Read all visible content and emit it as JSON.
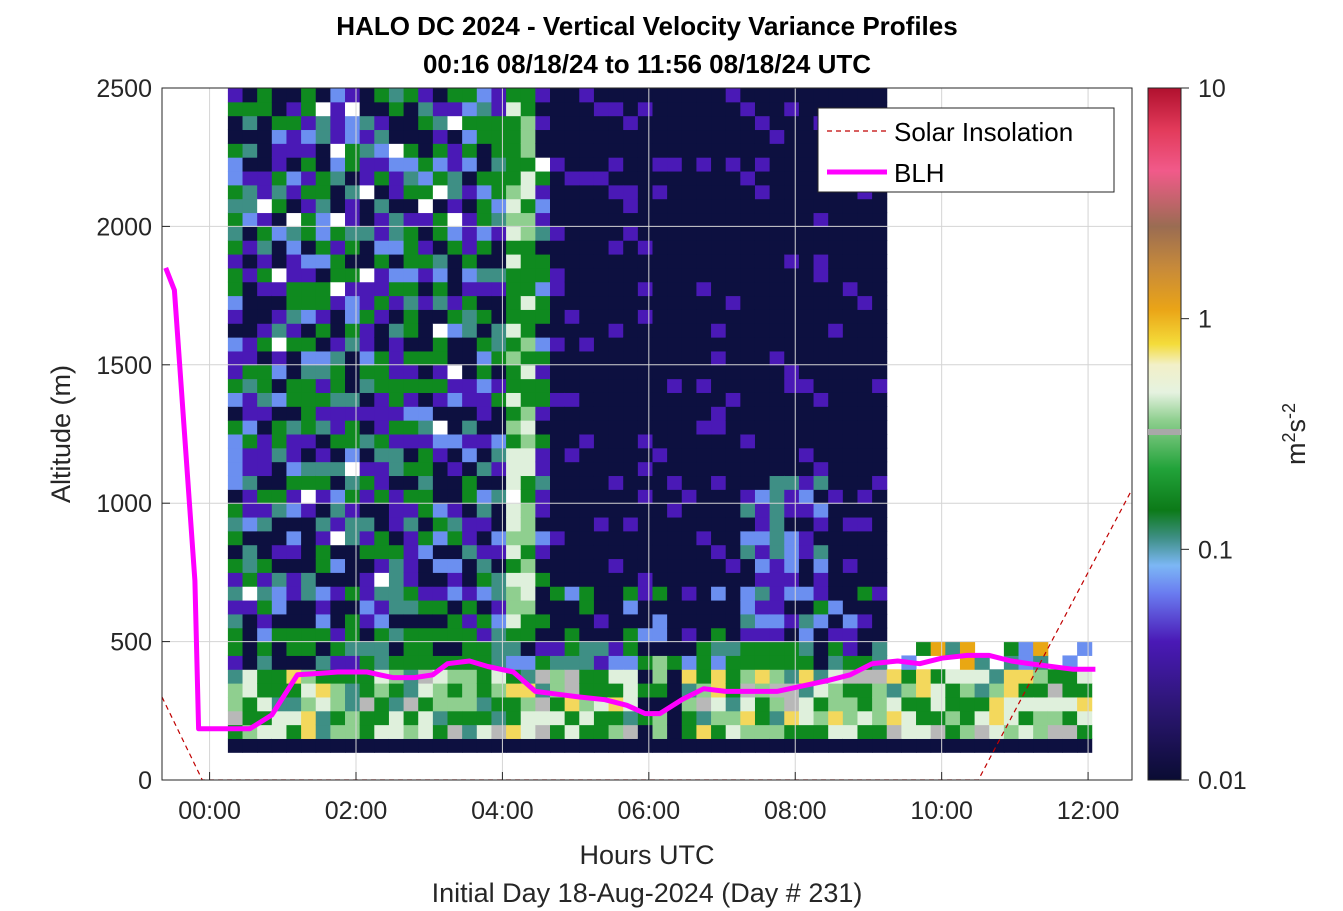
{
  "chart_data": {
    "type": "heatmap",
    "title": "HALO DC 2024 - Vertical Velocity Variance Profiles",
    "subtitle": "00:16 08/18/24 to 11:56 08/18/24  UTC",
    "xlabel": "Hours UTC",
    "xlabel2": "Initial Day 18-Aug-2024 (Day # 231)",
    "ylabel": "Altitude (m)",
    "x_ticks": [
      "00:00",
      "02:00",
      "04:00",
      "06:00",
      "08:00",
      "10:00",
      "12:00"
    ],
    "x_tick_values": [
      0,
      2,
      4,
      6,
      8,
      10,
      12
    ],
    "xlim": [
      -0.65,
      12.6
    ],
    "y_ticks": [
      "0",
      "500",
      "1000",
      "1500",
      "2000",
      "2500"
    ],
    "y_tick_values": [
      0,
      500,
      1000,
      1500,
      2000,
      2500
    ],
    "ylim": [
      0,
      2500
    ],
    "grid": true,
    "colorbar": {
      "label_base": "m",
      "label_exp1": "2",
      "label_mid": "s",
      "label_exp2": "-2",
      "scale": "log",
      "range": [
        0.01,
        10
      ],
      "ticks": [
        "10",
        "1",
        "0.1",
        "0.01"
      ],
      "tick_values": [
        10,
        1,
        0.1,
        0.01
      ]
    },
    "legend": {
      "position": "top-right",
      "entries": [
        "Solar Insolation",
        "BLH"
      ]
    },
    "series": [
      {
        "name": "BLH",
        "color": "#ff00ff",
        "x": [
          -0.6,
          -0.48,
          -0.2,
          -0.15,
          0.55,
          0.85,
          1.2,
          1.5,
          1.75,
          2.15,
          2.5,
          2.8,
          3.05,
          3.25,
          3.55,
          3.8,
          4.15,
          4.45,
          4.75,
          5.05,
          5.4,
          5.7,
          5.95,
          6.15,
          6.45,
          6.75,
          7.05,
          7.4,
          7.75,
          8.1,
          8.45,
          8.75,
          9.05,
          9.4,
          9.7,
          10.0,
          10.35,
          10.65,
          10.95,
          11.2,
          11.5,
          11.8,
          12.1
        ],
        "y": [
          1850,
          1770,
          720,
          185,
          185,
          235,
          380,
          385,
          390,
          390,
          370,
          370,
          380,
          420,
          430,
          410,
          390,
          320,
          310,
          300,
          290,
          270,
          240,
          240,
          290,
          330,
          320,
          320,
          320,
          340,
          360,
          380,
          420,
          430,
          420,
          440,
          450,
          450,
          430,
          420,
          410,
          400,
          400
        ]
      },
      {
        "name": "Solar Insolation",
        "color": "#c00000",
        "x": [
          -0.65,
          -0.1,
          10.5,
          12.6
        ],
        "y": [
          300,
          0,
          0,
          1050
        ]
      }
    ],
    "heatmap": {
      "x_range": [
        0.25,
        12.0
      ],
      "y_range": [
        100,
        2500
      ],
      "bin_width_hours": 0.2,
      "bin_height_m": 50,
      "note_values": "variance sampled from field; scale log 0.01-10 m2 s-2",
      "colors": {
        "low": "#0d1040",
        "purple": "#4a19b6",
        "blue": "#6b8ff0",
        "teal": "#3e8f85",
        "green": "#0f8a1f",
        "light_green": "#8fcf8f",
        "pale": "#dff0dc",
        "yellow": "#f3d85c",
        "grey": "#b8b8b8",
        "orange": "#e9a713",
        "red": "#b0102e"
      }
    }
  }
}
